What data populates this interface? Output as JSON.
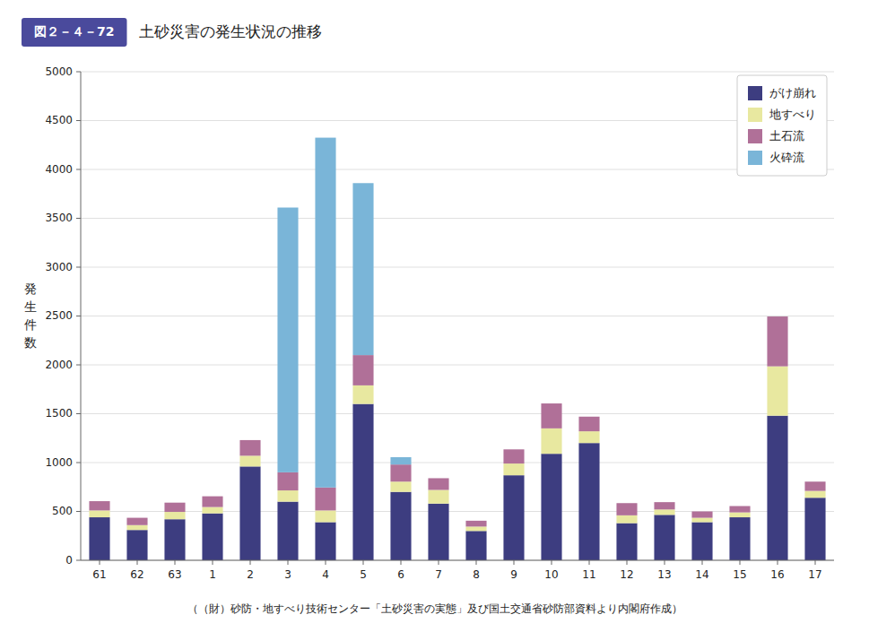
{
  "chart_data": {
    "type": "bar",
    "stacked": true,
    "title": "土砂災害の発生状況の推移",
    "annotations": [
      "図２－４－72",
      "（（財）砂防・地すべり技術センター「土砂災害の実態」及び国土交通省砂防部資料より内閣府作成）"
    ],
    "y_label": "発生件数",
    "categories": [
      "61",
      "62",
      "63",
      "1",
      "2",
      "3",
      "4",
      "5",
      "6",
      "7",
      "8",
      "9",
      "10",
      "11",
      "12",
      "13",
      "14",
      "15",
      "16",
      "17"
    ],
    "series": [
      {
        "name": "がけ崩れ",
        "color": "#3d3d80",
        "values": [
          440,
          310,
          420,
          480,
          960,
          600,
          390,
          1600,
          700,
          580,
          300,
          870,
          1090,
          1200,
          380,
          465,
          390,
          440,
          1480,
          640
        ]
      },
      {
        "name": "地すべり",
        "color": "#e8e8a0",
        "values": [
          70,
          50,
          75,
          65,
          110,
          115,
          120,
          190,
          105,
          140,
          45,
          120,
          260,
          120,
          80,
          55,
          45,
          50,
          505,
          70
        ]
      },
      {
        "name": "土石流",
        "color": "#b07098",
        "values": [
          95,
          75,
          95,
          110,
          160,
          185,
          235,
          310,
          175,
          120,
          60,
          145,
          255,
          150,
          125,
          75,
          65,
          65,
          510,
          95
        ]
      },
      {
        "name": "火砕流",
        "color": "#7ab5d8",
        "values": [
          0,
          0,
          0,
          0,
          0,
          2710,
          3580,
          1760,
          75,
          0,
          0,
          0,
          0,
          0,
          0,
          0,
          0,
          0,
          0,
          0
        ]
      }
    ],
    "ylim": [
      0,
      5000
    ],
    "yticks": [
      0,
      500,
      1000,
      1500,
      2000,
      2500,
      3000,
      3500,
      4000,
      4500,
      5000
    ],
    "grid": true,
    "legend": "upper right"
  }
}
